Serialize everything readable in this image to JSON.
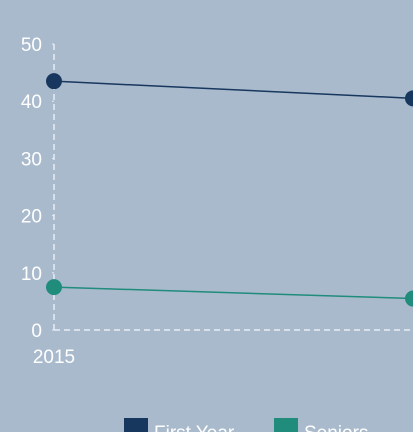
{
  "chart_data": {
    "type": "line",
    "categories": [
      "2015",
      null
    ],
    "series": [
      {
        "name": "First Year",
        "color": "#17375e",
        "values": [
          43.5,
          40.5
        ]
      },
      {
        "name": "Seniors",
        "color": "#1f8c7c",
        "values": [
          7.5,
          5.5
        ]
      }
    ],
    "ylim": [
      0,
      50
    ],
    "yticks": [
      0,
      10,
      20,
      30,
      40,
      50
    ],
    "grid": false,
    "legend": "bottom"
  }
}
